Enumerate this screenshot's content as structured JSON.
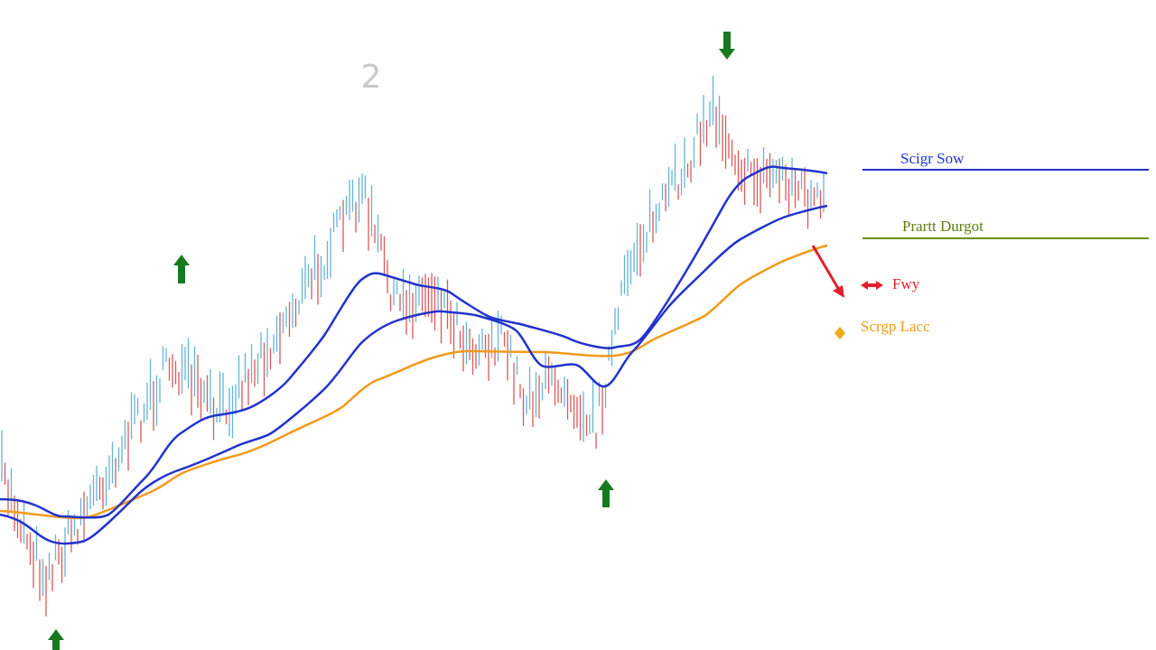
{
  "labels": {
    "number": "2",
    "sell_stop": "Scigr Sow",
    "profit_target": "Prartt Durgot",
    "buy": "Fwy",
    "stop_loss": "Scrgp Lacc"
  }
}
